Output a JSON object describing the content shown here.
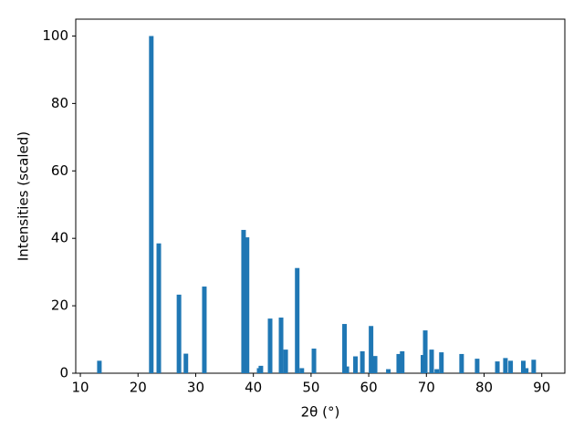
{
  "chart_data": {
    "type": "bar",
    "xlabel": "2θ (°)",
    "ylabel": "Intensities (scaled)",
    "color": "#1f77b4",
    "x": [
      13.3,
      22.3,
      23.6,
      27.1,
      28.3,
      31.5,
      38.3,
      38.9,
      41.0,
      41.3,
      42.9,
      44.8,
      45.6,
      47.6,
      48.4,
      50.5,
      55.8,
      56.2,
      57.7,
      58.9,
      60.4,
      61.1,
      63.4,
      65.2,
      65.8,
      69.4,
      69.8,
      70.9,
      71.8,
      72.6,
      76.1,
      78.8,
      82.3,
      83.7,
      84.6,
      86.8,
      87.3,
      88.6
    ],
    "values": [
      3.7,
      100,
      38.5,
      23.3,
      5.8,
      25.7,
      42.5,
      40.3,
      1.5,
      2.2,
      16.2,
      16.5,
      7.0,
      31.2,
      1.5,
      7.3,
      14.6,
      2.0,
      5.0,
      6.5,
      14.0,
      5.1,
      1.2,
      5.7,
      6.5,
      5.4,
      12.7,
      7.0,
      1.2,
      6.2,
      5.7,
      4.3,
      3.5,
      4.5,
      3.7,
      3.7,
      1.5,
      4.0
    ],
    "xlim": [
      9.2,
      94
    ],
    "ylim": [
      0,
      105
    ],
    "xticks": [
      10,
      20,
      30,
      40,
      50,
      60,
      70,
      80,
      90
    ],
    "yticks": [
      0,
      20,
      40,
      60,
      80,
      100
    ],
    "grid": false
  }
}
